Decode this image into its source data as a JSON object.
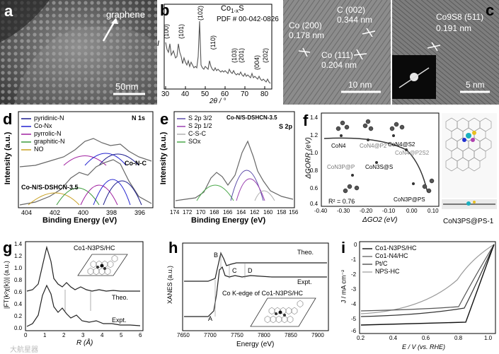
{
  "panels": {
    "a": {
      "label": "a",
      "annotation": "graphene",
      "scalebar": "50nm"
    },
    "b": {
      "label": "b",
      "title": "Co1-xS",
      "title_sub": "1-x",
      "title_main": "Co",
      "title_end": "S",
      "pdf": "PDF # 00-042-0826",
      "ylabel": "I",
      "xlabel": "2θ / °",
      "peaks": [
        "(100)",
        "(101)",
        "(102)",
        "(110)",
        "(103)",
        "(201)",
        "(004)",
        "(202)"
      ],
      "xticks": [
        "30",
        "40",
        "50",
        "60",
        "70",
        "80"
      ]
    },
    "c": {
      "label": "c",
      "annotations": {
        "co200": "Co (200)",
        "d200": "0.178 nm",
        "c002": "C (002)",
        "dc002": "0.344 nm",
        "co111": "Co (111)",
        "d111": "0.204 nm",
        "co9s8": "Co9S8 (511)",
        "d511": "0.191 nm"
      },
      "scalebar_left": "10 nm",
      "scalebar_right": "5 nm"
    },
    "d": {
      "label": "d",
      "legend": [
        "pyridinic-N",
        "Co-Nx",
        "pyrrolic-N",
        "graphitic-N",
        "NO"
      ],
      "legend_colors": [
        "#1a1a8c",
        "#2020d0",
        "#a020a0",
        "#3a9a3a",
        "#c8a020"
      ],
      "corner": "N 1s",
      "trace_top": "Co-N-C",
      "trace_bottom": "Co-N/S-DSHCN-3.5",
      "ylabel": "Intensity (a.u.)",
      "xlabel": "Binding Energy (eV)",
      "xticks": [
        "404",
        "402",
        "400",
        "398",
        "396"
      ]
    },
    "e": {
      "label": "e",
      "legend": [
        "S 2p 3/2",
        "S 2p 1/2",
        "C-S-C",
        "SOx"
      ],
      "legend_colors": [
        "#5a4aa8",
        "#9a40b0",
        "#b0b0b0",
        "#4aa84a"
      ],
      "sample": "Co-N/S-DSHCN-3.5",
      "corner": "S 2p",
      "ylabel": "Intensity (a.u.)",
      "xlabel": "Binding Energy (eV)",
      "xticks": [
        "174",
        "172",
        "170",
        "168",
        "166",
        "164",
        "162",
        "160",
        "158",
        "156"
      ]
    },
    "f": {
      "label": "f",
      "ylabel": "ΔGORR (eV)",
      "xlabel": "ΔGO2 (eV)",
      "yticks": [
        "1.4",
        "1.2",
        "1.0",
        "0.8",
        "0.6",
        "0.4"
      ],
      "xticks": [
        "-0.40",
        "-0.30",
        "-0.20",
        "-0.10",
        "0.00",
        "0.10"
      ],
      "r2": "R² = 0.76",
      "points_labels": [
        "CoN4",
        "CoN4@P2",
        "CoN4@S2",
        "CoN4@P2S2",
        "CoN3P@P",
        "CoN3S@S",
        "CoN3P@PS"
      ],
      "structure_label": "CoN3PS@PS-1"
    },
    "g": {
      "label": "g",
      "sample": "Co1-N3PS/HC",
      "trace_top": "Theo.",
      "trace_bottom": "Expt.",
      "ylabel": "|FT(k²χ(k))| (a.u.)",
      "xlabel": "R (Å)",
      "yticks": [
        "0.0",
        "0.2",
        "0.4",
        "0.6",
        "0.8",
        "1.0",
        "1.2",
        "1.4"
      ],
      "xticks": [
        "0",
        "1",
        "2",
        "3",
        "4",
        "5",
        "6"
      ]
    },
    "h": {
      "label": "h",
      "trace_top": "Theo.",
      "trace_bottom": "Expt.",
      "edge_label": "Co K-edge of Co1-N3PS/HC",
      "features": [
        "A",
        "B",
        "C",
        "D"
      ],
      "ylabel": "XANES (a.u.)",
      "xlabel": "Energy (eV)",
      "xticks": [
        "7650",
        "7700",
        "7750",
        "7800",
        "7850",
        "7900"
      ]
    },
    "i": {
      "label": "i",
      "legend": [
        "Co1-N3PS/HC",
        "Co1-N4/HC",
        "Pt/C",
        "NPS-HC"
      ],
      "ylabel": "J / mA cm⁻²",
      "xlabel": "E / V (vs. RHE)",
      "yticks": [
        "0",
        "-1",
        "-2",
        "-3",
        "-4",
        "-5",
        "-6"
      ],
      "xticks": [
        "0.2",
        "0.4",
        "0.6",
        "0.8",
        "1.0"
      ]
    }
  },
  "watermark": "大航星器"
}
